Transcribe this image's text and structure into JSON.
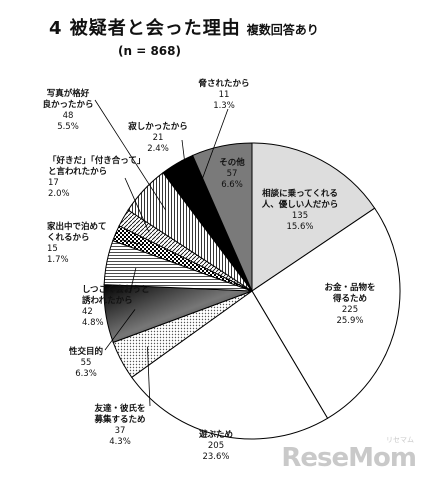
{
  "title": "4 被疑者と会った理由",
  "subtitle": "複数回答あり",
  "n_label": "(n = 868)",
  "watermark": "ReseMom",
  "watermark_small": "リセマム",
  "colors": {
    "gray_dark": "#7a7a7a",
    "gray_light": "#dddddd",
    "black": "#000000",
    "white": "#ffffff"
  },
  "chart_data": {
    "type": "pie",
    "categories": [
      "相談に乗ってくれる人、優しい人だから",
      "お金・品物を得るため",
      "遊ぶため",
      "友達・彼氏を募集するため",
      "性交目的",
      "しつこく会おうと誘われたから",
      "家出中で泊めてくれるから",
      "「好きだ」「付き合って」と言われたから",
      "写真が格好良かったから",
      "寂しかったから",
      "脅されたから",
      "その他"
    ],
    "label_lines": [
      [
        "相談に乗ってくれる",
        "人、優しい人だから"
      ],
      [
        "お金・品物を",
        "得るため"
      ],
      [
        "遊ぶため"
      ],
      [
        "友達・彼氏を",
        "募集するため"
      ],
      [
        "性交目的"
      ],
      [
        "しつこく会おうと",
        "誘われたから"
      ],
      [
        "家出中で泊めて",
        "くれるから"
      ],
      [
        "「好きだ」「付き合って」",
        "と言われたから"
      ],
      [
        "写真が格好",
        "良かったから"
      ],
      [
        "寂しかったから"
      ],
      [
        "脅されたから"
      ],
      [
        "その他"
      ]
    ],
    "values": [
      135,
      225,
      205,
      37,
      55,
      42,
      15,
      17,
      48,
      21,
      11,
      57
    ],
    "percents": [
      "15.6%",
      "25.9%",
      "23.6%",
      "4.3%",
      "6.3%",
      "4.8%",
      "1.7%",
      "2.0%",
      "5.5%",
      "2.4%",
      "1.3%",
      "6.6%"
    ],
    "start_angle_deg": 0,
    "direction": "clockwise"
  }
}
